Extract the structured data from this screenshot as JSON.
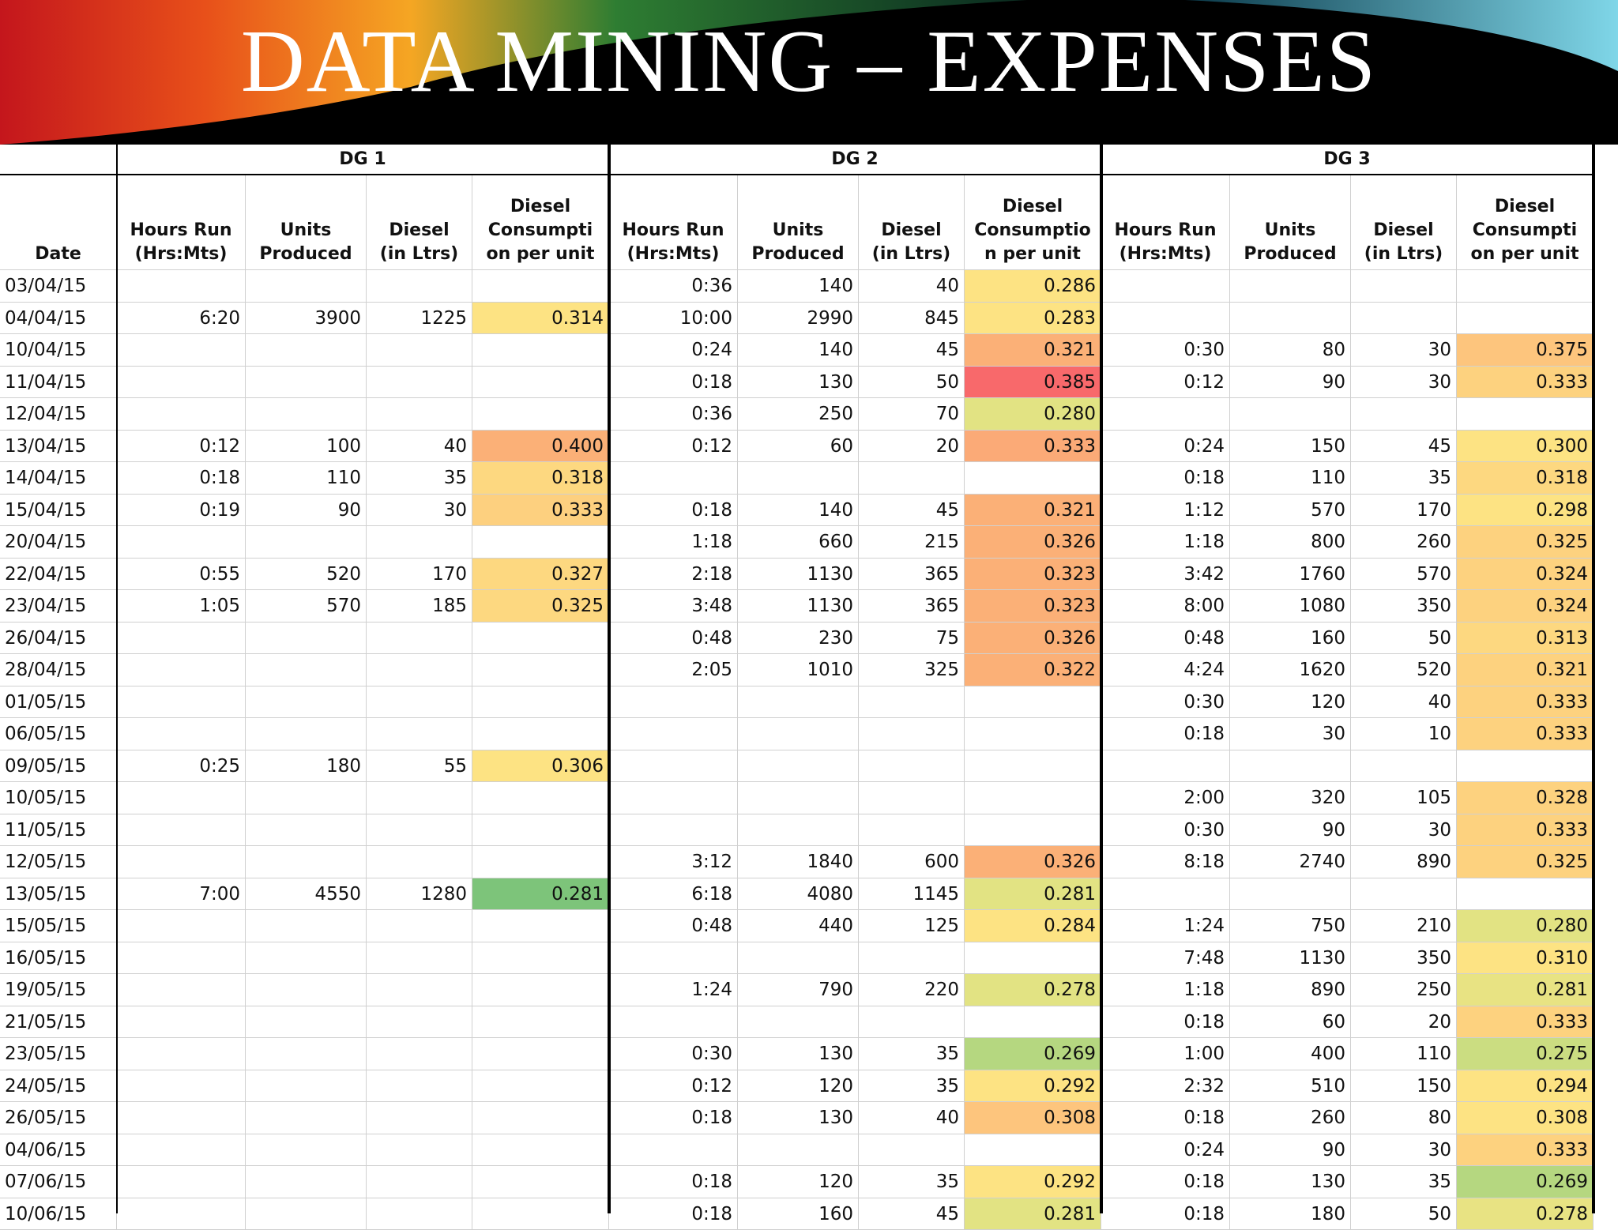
{
  "slide": {
    "title": "DATA MINING – EXPENSES"
  },
  "table": {
    "date_header": "Date",
    "groups": [
      {
        "name": "DG 1",
        "columns": [
          [
            "Hours Run",
            "(Hrs:Mts)"
          ],
          [
            "Units",
            "Produced"
          ],
          [
            "Diesel",
            "(in Ltrs)"
          ],
          [
            "Diesel",
            "Consumpti",
            "on per unit"
          ]
        ]
      },
      {
        "name": "DG 2",
        "columns": [
          [
            "Hours Run",
            "(Hrs:Mts)"
          ],
          [
            "Units",
            "Produced"
          ],
          [
            "Diesel",
            "(in Ltrs)"
          ],
          [
            "Diesel",
            "Consumptio",
            "n per unit"
          ]
        ]
      },
      {
        "name": "DG 3",
        "columns": [
          [
            "Hours Run",
            "(Hrs:Mts)"
          ],
          [
            "Units",
            "Produced"
          ],
          [
            "Diesel",
            "(in Ltrs)"
          ],
          [
            "Diesel",
            "Consumpti",
            "on per unit"
          ]
        ]
      }
    ],
    "rows": [
      {
        "date": "03/04/15",
        "dg": [
          null,
          [
            "0:36",
            "140",
            "40",
            "0.286"
          ],
          null
        ],
        "colors": [
          null,
          "#fde383",
          null
        ]
      },
      {
        "date": "04/04/15",
        "dg": [
          [
            "6:20",
            "3900",
            "1225",
            "0.314"
          ],
          [
            "10:00",
            "2990",
            "845",
            "0.283"
          ],
          null
        ],
        "colors": [
          "#fde383",
          "#fde383",
          null
        ]
      },
      {
        "date": "10/04/15",
        "dg": [
          null,
          [
            "0:24",
            "140",
            "45",
            "0.321"
          ],
          [
            "0:30",
            "80",
            "30",
            "0.375"
          ]
        ],
        "colors": [
          null,
          "#fbb077",
          "#fdc57d"
        ]
      },
      {
        "date": "11/04/15",
        "dg": [
          null,
          [
            "0:18",
            "130",
            "50",
            "0.385"
          ],
          [
            "0:12",
            "90",
            "30",
            "0.333"
          ]
        ],
        "colors": [
          null,
          "#f8696b",
          "#fdd27f"
        ]
      },
      {
        "date": "12/04/15",
        "dg": [
          null,
          [
            "0:36",
            "250",
            "70",
            "0.280"
          ],
          null
        ],
        "colors": [
          null,
          "#e2e383",
          null
        ]
      },
      {
        "date": "13/04/15",
        "dg": [
          [
            "0:12",
            "100",
            "40",
            "0.400"
          ],
          [
            "0:12",
            "60",
            "20",
            "0.333"
          ],
          [
            "0:24",
            "150",
            "45",
            "0.300"
          ]
        ],
        "colors": [
          "#fbb077",
          "#fbaa77",
          "#fde383"
        ]
      },
      {
        "date": "14/04/15",
        "dg": [
          [
            "0:18",
            "110",
            "35",
            "0.318"
          ],
          null,
          [
            "0:18",
            "110",
            "35",
            "0.318"
          ]
        ],
        "colors": [
          "#fdd880",
          null,
          "#fdd880"
        ]
      },
      {
        "date": "15/04/15",
        "dg": [
          [
            "0:19",
            "90",
            "30",
            "0.333"
          ],
          [
            "0:18",
            "140",
            "45",
            "0.321"
          ],
          [
            "1:12",
            "570",
            "170",
            "0.298"
          ]
        ],
        "colors": [
          "#fdd07f",
          "#fbb077",
          "#fde383"
        ]
      },
      {
        "date": "20/04/15",
        "dg": [
          null,
          [
            "1:18",
            "660",
            "215",
            "0.326"
          ],
          [
            "1:18",
            "800",
            "260",
            "0.325"
          ]
        ],
        "colors": [
          null,
          "#fbb077",
          "#fdd27f"
        ]
      },
      {
        "date": "22/04/15",
        "dg": [
          [
            "0:55",
            "520",
            "170",
            "0.327"
          ],
          [
            "2:18",
            "1130",
            "365",
            "0.323"
          ],
          [
            "3:42",
            "1760",
            "570",
            "0.324"
          ]
        ],
        "colors": [
          "#fdd880",
          "#fbb077",
          "#fdd27f"
        ]
      },
      {
        "date": "23/04/15",
        "dg": [
          [
            "1:05",
            "570",
            "185",
            "0.325"
          ],
          [
            "3:48",
            "1130",
            "365",
            "0.323"
          ],
          [
            "8:00",
            "1080",
            "350",
            "0.324"
          ]
        ],
        "colors": [
          "#fdd880",
          "#fbb077",
          "#fdd27f"
        ]
      },
      {
        "date": "26/04/15",
        "dg": [
          null,
          [
            "0:48",
            "230",
            "75",
            "0.326"
          ],
          [
            "0:48",
            "160",
            "50",
            "0.313"
          ]
        ],
        "colors": [
          null,
          "#fbb077",
          "#fdd880"
        ]
      },
      {
        "date": "28/04/15",
        "dg": [
          null,
          [
            "2:05",
            "1010",
            "325",
            "0.322"
          ],
          [
            "4:24",
            "1620",
            "520",
            "0.321"
          ]
        ],
        "colors": [
          null,
          "#fbb077",
          "#fdd27f"
        ]
      },
      {
        "date": "01/05/15",
        "dg": [
          null,
          null,
          [
            "0:30",
            "120",
            "40",
            "0.333"
          ]
        ],
        "colors": [
          null,
          null,
          "#fdd27f"
        ]
      },
      {
        "date": "06/05/15",
        "dg": [
          null,
          null,
          [
            "0:18",
            "30",
            "10",
            "0.333"
          ]
        ],
        "colors": [
          null,
          null,
          "#fdd27f"
        ]
      },
      {
        "date": "09/05/15",
        "dg": [
          [
            "0:25",
            "180",
            "55",
            "0.306"
          ],
          null,
          null
        ],
        "colors": [
          "#fde383",
          null,
          null
        ]
      },
      {
        "date": "10/05/15",
        "dg": [
          null,
          null,
          [
            "2:00",
            "320",
            "105",
            "0.328"
          ]
        ],
        "colors": [
          null,
          null,
          "#fdd27f"
        ]
      },
      {
        "date": "11/05/15",
        "dg": [
          null,
          null,
          [
            "0:30",
            "90",
            "30",
            "0.333"
          ]
        ],
        "colors": [
          null,
          null,
          "#fdd27f"
        ]
      },
      {
        "date": "12/05/15",
        "dg": [
          null,
          [
            "3:12",
            "1840",
            "600",
            "0.326"
          ],
          [
            "8:18",
            "2740",
            "890",
            "0.325"
          ]
        ],
        "colors": [
          null,
          "#fbb077",
          "#fdd27f"
        ]
      },
      {
        "date": "13/05/15",
        "dg": [
          [
            "7:00",
            "4550",
            "1280",
            "0.281"
          ],
          [
            "6:18",
            "4080",
            "1145",
            "0.281"
          ],
          null
        ],
        "colors": [
          "#7dc47a",
          "#e2e383",
          null
        ]
      },
      {
        "date": "15/05/15",
        "dg": [
          null,
          [
            "0:48",
            "440",
            "125",
            "0.284"
          ],
          [
            "1:24",
            "750",
            "210",
            "0.280"
          ]
        ],
        "colors": [
          null,
          "#fde383",
          "#e2e383"
        ]
      },
      {
        "date": "16/05/15",
        "dg": [
          null,
          null,
          [
            "7:48",
            "1130",
            "350",
            "0.310"
          ]
        ],
        "colors": [
          null,
          null,
          "#fde383"
        ]
      },
      {
        "date": "19/05/15",
        "dg": [
          null,
          [
            "1:24",
            "790",
            "220",
            "0.278"
          ],
          [
            "1:18",
            "890",
            "250",
            "0.281"
          ]
        ],
        "colors": [
          null,
          "#e2e383",
          "#e8e383"
        ]
      },
      {
        "date": "21/05/15",
        "dg": [
          null,
          null,
          [
            "0:18",
            "60",
            "20",
            "0.333"
          ]
        ],
        "colors": [
          null,
          null,
          "#fdd27f"
        ]
      },
      {
        "date": "23/05/15",
        "dg": [
          null,
          [
            "0:30",
            "130",
            "35",
            "0.269"
          ],
          [
            "1:00",
            "400",
            "110",
            "0.275"
          ]
        ],
        "colors": [
          null,
          "#b5d780",
          "#cbdd81"
        ]
      },
      {
        "date": "24/05/15",
        "dg": [
          null,
          [
            "0:12",
            "120",
            "35",
            "0.292"
          ],
          [
            "2:32",
            "510",
            "150",
            "0.294"
          ]
        ],
        "colors": [
          null,
          "#fde383",
          "#fde383"
        ]
      },
      {
        "date": "26/05/15",
        "dg": [
          null,
          [
            "0:18",
            "130",
            "40",
            "0.308"
          ],
          [
            "0:18",
            "260",
            "80",
            "0.308"
          ]
        ],
        "colors": [
          null,
          "#fdc57d",
          "#fde383"
        ]
      },
      {
        "date": "04/06/15",
        "dg": [
          null,
          null,
          [
            "0:24",
            "90",
            "30",
            "0.333"
          ]
        ],
        "colors": [
          null,
          null,
          "#fdd27f"
        ]
      },
      {
        "date": "07/06/15",
        "dg": [
          null,
          [
            "0:18",
            "120",
            "35",
            "0.292"
          ],
          [
            "0:18",
            "130",
            "35",
            "0.269"
          ]
        ],
        "colors": [
          null,
          "#fde383",
          "#b5d780"
        ]
      },
      {
        "date": "10/06/15",
        "dg": [
          null,
          [
            "0:18",
            "160",
            "45",
            "0.281"
          ],
          [
            "0:18",
            "180",
            "50",
            "0.278"
          ]
        ],
        "colors": [
          null,
          "#e2e383",
          "#e8e383"
        ]
      }
    ]
  }
}
